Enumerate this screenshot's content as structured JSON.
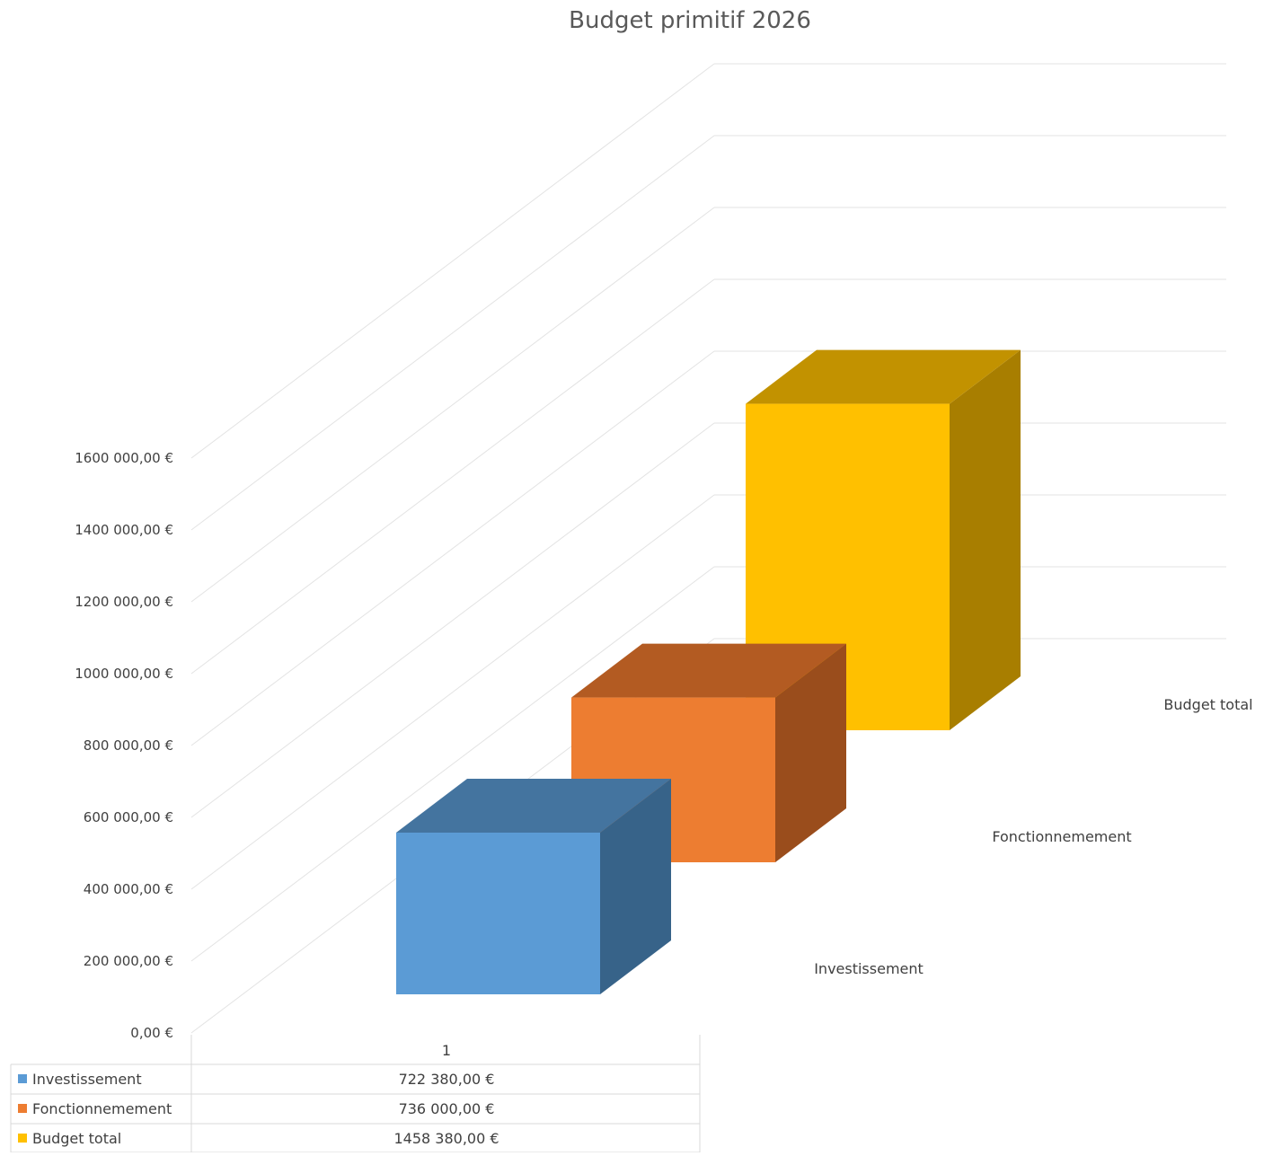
{
  "chart_data": {
    "type": "bar",
    "title": "Budget primitif 2026",
    "categories": [
      "1"
    ],
    "series": [
      {
        "name": "Investissement",
        "values": [
          722380
        ],
        "label": "722 380,00 €",
        "color": "#5b9bd5",
        "side_color": "#376389",
        "top_color": "#44749f"
      },
      {
        "name": "Fonctionnemement",
        "values": [
          736000
        ],
        "label": "736 000,00 €",
        "color": "#ed7d31",
        "side_color": "#9a4d1c",
        "top_color": "#b35b22"
      },
      {
        "name": "Budget total",
        "values": [
          1458380
        ],
        "label": "1458 380,00 €",
        "color": "#ffc000",
        "side_color": "#a87e00",
        "top_color": "#c29200"
      }
    ],
    "y_ticks": [
      {
        "value": 0,
        "label": "0,00 €"
      },
      {
        "value": 200000,
        "label": "200 000,00 €"
      },
      {
        "value": 400000,
        "label": "400 000,00 €"
      },
      {
        "value": 600000,
        "label": "600 000,00 €"
      },
      {
        "value": 800000,
        "label": "800 000,00 €"
      },
      {
        "value": 1000000,
        "label": "1000 000,00 €"
      },
      {
        "value": 1200000,
        "label": "1200 000,00 €"
      },
      {
        "value": 1400000,
        "label": "1400 000,00 €"
      },
      {
        "value": 1600000,
        "label": "1600 000,00 €"
      }
    ],
    "ylim": [
      0,
      1600000
    ],
    "grid": true,
    "data_table": true,
    "legend": "data-table"
  }
}
